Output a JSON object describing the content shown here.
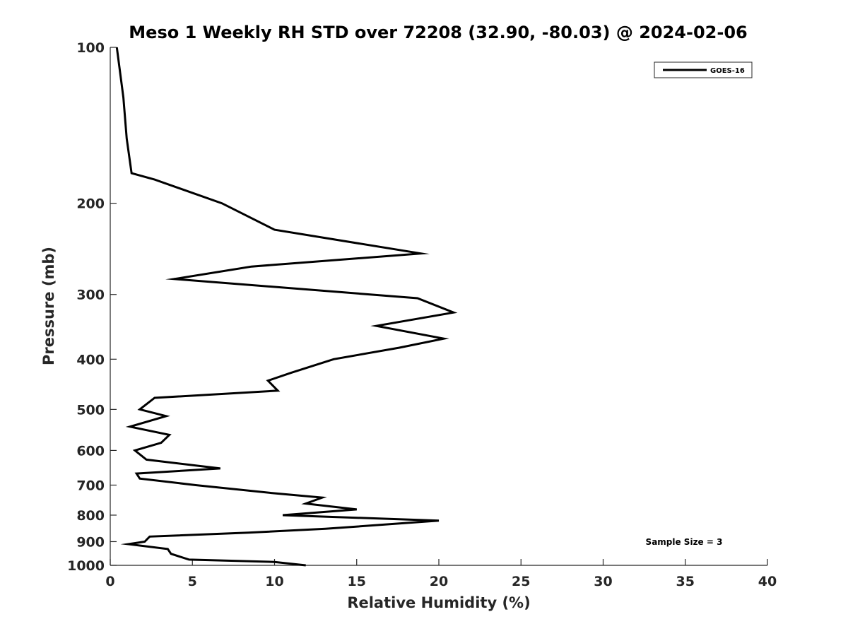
{
  "chart_data": {
    "type": "line",
    "title": "Meso 1 Weekly RH STD over 72208 (32.90, -80.03) @ 2024-02-06",
    "xlabel": "Relative Humidity (%)",
    "ylabel": "Pressure (mb)",
    "xlim": [
      0,
      40
    ],
    "ylim": [
      100,
      1000
    ],
    "y_scale": "log",
    "y_reversed": true,
    "x_ticks": [
      "0",
      "5",
      "10",
      "15",
      "20",
      "25",
      "30",
      "35",
      "40"
    ],
    "y_ticks": [
      "100",
      "200",
      "300",
      "400",
      "500",
      "600",
      "700",
      "800",
      "900",
      "1000"
    ],
    "grid": false,
    "legend_position": "top-right",
    "annotation": "Sample Size = 3",
    "series": [
      {
        "name": "GOES-16",
        "color": "#000000",
        "points": [
          [
            0.4,
            100
          ],
          [
            0.8,
            125
          ],
          [
            1.0,
            150
          ],
          [
            1.3,
            175
          ],
          [
            2.7,
            180
          ],
          [
            6.8,
            200
          ],
          [
            10.0,
            225
          ],
          [
            18.9,
            250
          ],
          [
            8.6,
            265
          ],
          [
            3.9,
            280
          ],
          [
            18.7,
            305
          ],
          [
            20.9,
            325
          ],
          [
            16.2,
            345
          ],
          [
            20.3,
            365
          ],
          [
            17.6,
            380
          ],
          [
            13.6,
            400
          ],
          [
            11.0,
            425
          ],
          [
            9.6,
            440
          ],
          [
            10.2,
            460
          ],
          [
            2.7,
            475
          ],
          [
            1.8,
            500
          ],
          [
            3.4,
            515
          ],
          [
            1.2,
            540
          ],
          [
            3.6,
            560
          ],
          [
            3.1,
            580
          ],
          [
            1.5,
            600
          ],
          [
            2.2,
            625
          ],
          [
            6.7,
            650
          ],
          [
            1.6,
            665
          ],
          [
            1.8,
            680
          ],
          [
            5.2,
            700
          ],
          [
            9.8,
            725
          ],
          [
            12.9,
            740
          ],
          [
            11.9,
            760
          ],
          [
            15.0,
            780
          ],
          [
            10.5,
            800
          ],
          [
            20.0,
            820
          ],
          [
            13.1,
            850
          ],
          [
            8.4,
            865
          ],
          [
            2.4,
            880
          ],
          [
            2.1,
            900
          ],
          [
            1.1,
            910
          ],
          [
            3.5,
            930
          ],
          [
            3.7,
            950
          ],
          [
            4.8,
            975
          ],
          [
            10.0,
            985
          ],
          [
            11.9,
            1000
          ]
        ]
      }
    ]
  }
}
